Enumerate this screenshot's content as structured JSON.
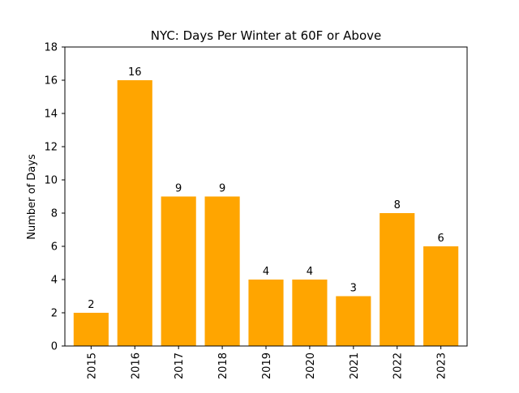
{
  "chart_data": {
    "type": "bar",
    "title": "NYC: Days Per Winter at 60F or Above",
    "xlabel": "",
    "ylabel": "Number of Days",
    "categories": [
      "2015",
      "2016",
      "2017",
      "2018",
      "2019",
      "2020",
      "2021",
      "2022",
      "2023"
    ],
    "values": [
      2,
      16,
      9,
      9,
      4,
      4,
      3,
      8,
      6
    ],
    "ylim": [
      0,
      18
    ],
    "yticks": [
      0,
      2,
      4,
      6,
      8,
      10,
      12,
      14,
      16,
      18
    ],
    "bar_color": "#ffa500",
    "grid": false,
    "data_labels": true
  }
}
